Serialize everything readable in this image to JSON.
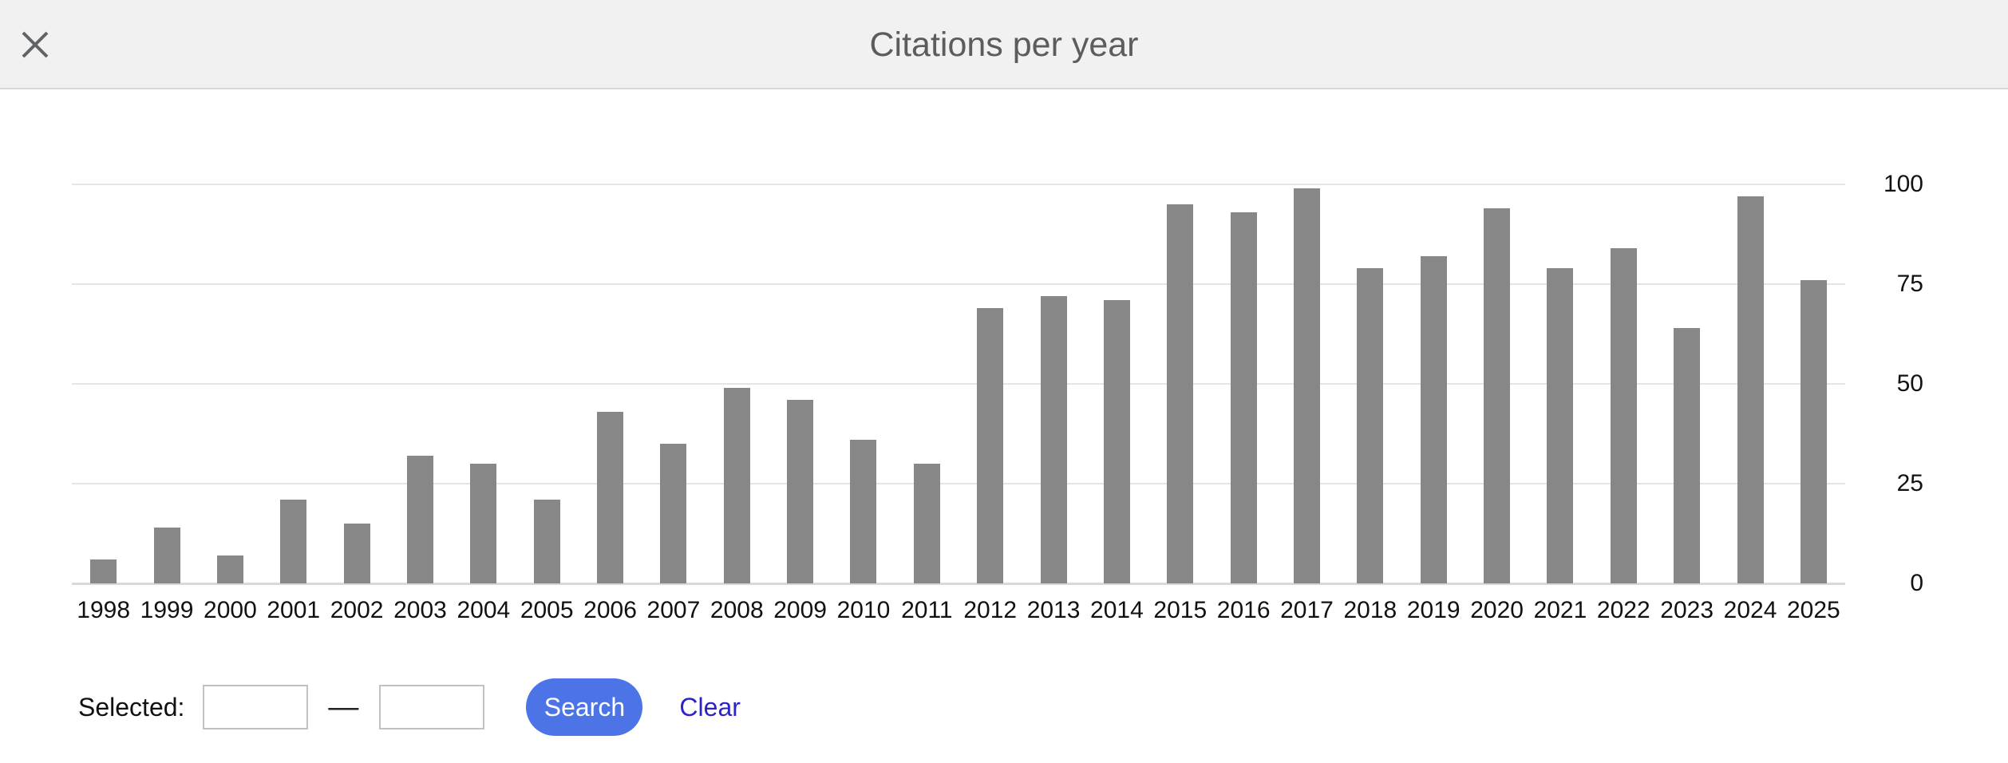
{
  "dialog": {
    "title": "Citations per year"
  },
  "chart_data": {
    "type": "bar",
    "title": "Citations per year",
    "categories": [
      "1998",
      "1999",
      "2000",
      "2001",
      "2002",
      "2003",
      "2004",
      "2005",
      "2006",
      "2007",
      "2008",
      "2009",
      "2010",
      "2011",
      "2012",
      "2013",
      "2014",
      "2015",
      "2016",
      "2017",
      "2018",
      "2019",
      "2020",
      "2021",
      "2022",
      "2023",
      "2024",
      "2025"
    ],
    "values": [
      6,
      14,
      7,
      21,
      15,
      32,
      30,
      21,
      43,
      35,
      49,
      46,
      36,
      30,
      69,
      72,
      71,
      95,
      93,
      99,
      79,
      82,
      94,
      79,
      84,
      64,
      97,
      76
    ],
    "xlabel": "",
    "ylabel": "",
    "ylim": [
      0,
      100
    ],
    "yticks": [
      100,
      75,
      50,
      25,
      0
    ],
    "grid": true,
    "legend": "none",
    "axis_side": "right",
    "bar_color": "#878787"
  },
  "controls": {
    "selected_label": "Selected:",
    "range_start_value": "",
    "range_end_value": "",
    "separator": "—",
    "search_label": "Search",
    "clear_label": "Clear"
  },
  "colors": {
    "header_bg": "#f1f1f1",
    "header_border": "#d8d8d8",
    "title_text": "#5c5c5c",
    "close_icon": "#5f6368",
    "bar": "#878787",
    "gridline": "#e5e5e5",
    "baseline": "#d9d9d9",
    "axis_text": "#111111",
    "input_border": "#c2c2c2",
    "search_button_bg": "#4c74e6",
    "search_button_text": "#ffffff",
    "clear_link": "#2b23c8"
  }
}
